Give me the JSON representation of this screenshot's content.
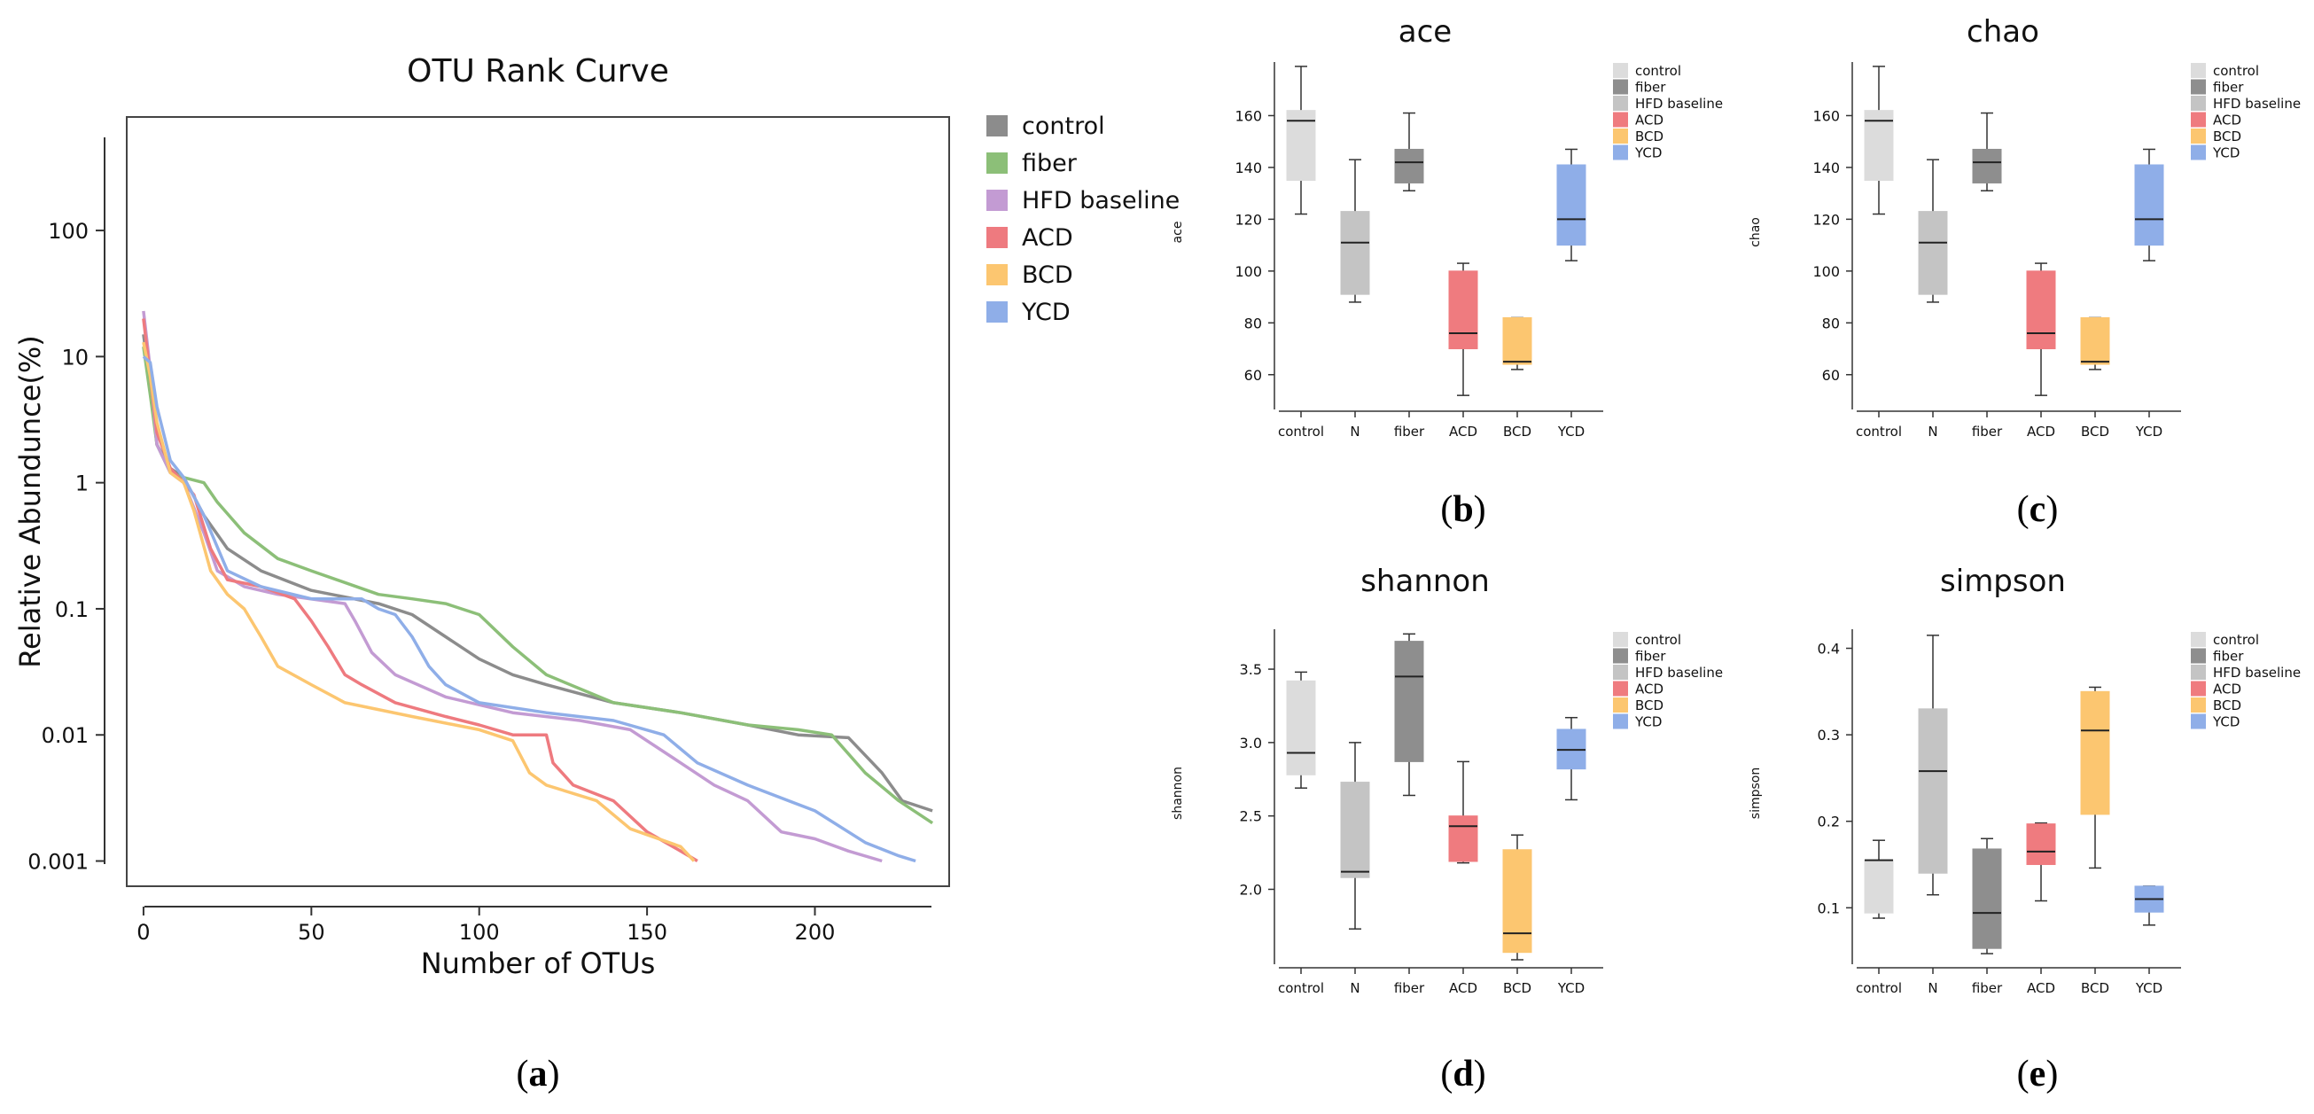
{
  "panels": {
    "a": {
      "caption_open": "(",
      "caption_letter": "a",
      "caption_close": ")"
    },
    "b": {
      "caption_open": "(",
      "caption_letter": "b",
      "caption_close": ")"
    },
    "c": {
      "caption_open": "(",
      "caption_letter": "c",
      "caption_close": ")"
    },
    "d": {
      "caption_open": "(",
      "caption_letter": "d",
      "caption_close": ")"
    },
    "e": {
      "caption_open": "(",
      "caption_letter": "e",
      "caption_close": ")"
    }
  },
  "chart_data": [
    {
      "id": "a",
      "type": "line",
      "title": "OTU Rank Curve",
      "xlabel": "Number of OTUs",
      "ylabel": "Relative Abundunce(%)",
      "xlim": [
        -5,
        240
      ],
      "ylim_log10": [
        -3.2,
        2.9
      ],
      "x_ticks": [
        0,
        50,
        100,
        150,
        200
      ],
      "x_tick_labels": [
        "0",
        "50",
        "100",
        "150",
        "200"
      ],
      "y_ticks": [
        100,
        10,
        1,
        0.1,
        0.01,
        0.001
      ],
      "y_tick_labels": [
        "100",
        "10",
        "1",
        "0.1",
        "0.01",
        "0.001"
      ],
      "legend_position": "right-outside",
      "series": [
        {
          "name": "control",
          "color": "#8c8c8c",
          "points": [
            [
              0,
              15
            ],
            [
              2,
              6
            ],
            [
              4,
              2
            ],
            [
              8,
              1.3
            ],
            [
              12,
              1.1
            ],
            [
              18,
              0.55
            ],
            [
              25,
              0.3
            ],
            [
              35,
              0.2
            ],
            [
              50,
              0.14
            ],
            [
              70,
              0.11
            ],
            [
              80,
              0.09
            ],
            [
              90,
              0.06
            ],
            [
              100,
              0.04
            ],
            [
              110,
              0.03
            ],
            [
              120,
              0.025
            ],
            [
              140,
              0.018
            ],
            [
              160,
              0.015
            ],
            [
              180,
              0.012
            ],
            [
              195,
              0.01
            ],
            [
              210,
              0.0095
            ],
            [
              220,
              0.005
            ],
            [
              226,
              0.003
            ],
            [
              235,
              0.0025
            ]
          ]
        },
        {
          "name": "fiber",
          "color": "#8cbf78",
          "points": [
            [
              0,
              12
            ],
            [
              2,
              5
            ],
            [
              4,
              2
            ],
            [
              8,
              1.2
            ],
            [
              12,
              1.1
            ],
            [
              18,
              1.0
            ],
            [
              22,
              0.7
            ],
            [
              30,
              0.4
            ],
            [
              40,
              0.25
            ],
            [
              50,
              0.2
            ],
            [
              70,
              0.13
            ],
            [
              80,
              0.12
            ],
            [
              90,
              0.11
            ],
            [
              100,
              0.09
            ],
            [
              110,
              0.05
            ],
            [
              120,
              0.03
            ],
            [
              140,
              0.018
            ],
            [
              160,
              0.015
            ],
            [
              180,
              0.012
            ],
            [
              195,
              0.011
            ],
            [
              205,
              0.01
            ],
            [
              215,
              0.005
            ],
            [
              225,
              0.003
            ],
            [
              235,
              0.002
            ]
          ]
        },
        {
          "name": "HFD baseline",
          "color": "#c39bd3",
          "points": [
            [
              0,
              23
            ],
            [
              2,
              8
            ],
            [
              4,
              2
            ],
            [
              8,
              1.2
            ],
            [
              12,
              1.0
            ],
            [
              18,
              0.4
            ],
            [
              22,
              0.2
            ],
            [
              30,
              0.15
            ],
            [
              40,
              0.13
            ],
            [
              60,
              0.11
            ],
            [
              63,
              0.08
            ],
            [
              68,
              0.045
            ],
            [
              75,
              0.03
            ],
            [
              90,
              0.02
            ],
            [
              110,
              0.015
            ],
            [
              130,
              0.013
            ],
            [
              145,
              0.011
            ],
            [
              160,
              0.006
            ],
            [
              170,
              0.004
            ],
            [
              180,
              0.003
            ],
            [
              190,
              0.0017
            ],
            [
              200,
              0.0015
            ],
            [
              210,
              0.0012
            ],
            [
              220,
              0.001
            ]
          ]
        },
        {
          "name": "ACD",
          "color": "#ee7a7f",
          "points": [
            [
              0,
              20
            ],
            [
              2,
              7
            ],
            [
              4,
              2.5
            ],
            [
              8,
              1.3
            ],
            [
              12,
              1.0
            ],
            [
              15,
              0.8
            ],
            [
              20,
              0.3
            ],
            [
              25,
              0.17
            ],
            [
              35,
              0.15
            ],
            [
              45,
              0.12
            ],
            [
              50,
              0.08
            ],
            [
              55,
              0.05
            ],
            [
              60,
              0.03
            ],
            [
              65,
              0.025
            ],
            [
              75,
              0.018
            ],
            [
              90,
              0.014
            ],
            [
              100,
              0.012
            ],
            [
              110,
              0.01
            ],
            [
              120,
              0.01
            ],
            [
              122,
              0.006
            ],
            [
              128,
              0.004
            ],
            [
              140,
              0.003
            ],
            [
              150,
              0.0017
            ],
            [
              160,
              0.0012
            ],
            [
              165,
              0.001
            ]
          ]
        },
        {
          "name": "BCD",
          "color": "#fcc670",
          "points": [
            [
              0,
              13
            ],
            [
              2,
              7
            ],
            [
              4,
              3
            ],
            [
              8,
              1.2
            ],
            [
              12,
              1.0
            ],
            [
              15,
              0.6
            ],
            [
              20,
              0.2
            ],
            [
              25,
              0.13
            ],
            [
              30,
              0.1
            ],
            [
              35,
              0.06
            ],
            [
              40,
              0.035
            ],
            [
              50,
              0.025
            ],
            [
              60,
              0.018
            ],
            [
              80,
              0.014
            ],
            [
              100,
              0.011
            ],
            [
              110,
              0.009
            ],
            [
              115,
              0.005
            ],
            [
              120,
              0.004
            ],
            [
              135,
              0.003
            ],
            [
              145,
              0.0018
            ],
            [
              160,
              0.0013
            ],
            [
              164,
              0.001
            ]
          ]
        },
        {
          "name": "YCD",
          "color": "#8faee8",
          "points": [
            [
              0,
              10
            ],
            [
              2,
              9
            ],
            [
              4,
              4
            ],
            [
              8,
              1.5
            ],
            [
              12,
              1.1
            ],
            [
              18,
              0.55
            ],
            [
              25,
              0.2
            ],
            [
              35,
              0.15
            ],
            [
              50,
              0.12
            ],
            [
              65,
              0.12
            ],
            [
              70,
              0.1
            ],
            [
              75,
              0.09
            ],
            [
              80,
              0.06
            ],
            [
              85,
              0.035
            ],
            [
              90,
              0.025
            ],
            [
              100,
              0.018
            ],
            [
              120,
              0.015
            ],
            [
              140,
              0.013
            ],
            [
              155,
              0.01
            ],
            [
              165,
              0.006
            ],
            [
              180,
              0.004
            ],
            [
              200,
              0.0025
            ],
            [
              215,
              0.0014
            ],
            [
              225,
              0.0011
            ],
            [
              230,
              0.001
            ]
          ]
        }
      ]
    },
    {
      "id": "b",
      "type": "box",
      "title": "ace",
      "ylabel": "ace",
      "categories": [
        "control",
        "N",
        "fiber",
        "ACD",
        "BCD",
        "YCD"
      ],
      "ylim": [
        50,
        180
      ],
      "y_ticks": [
        60,
        80,
        100,
        120,
        140,
        160
      ],
      "legend": [
        "control",
        "fiber",
        "HFD baseline",
        "ACD",
        "BCD",
        "YCD"
      ],
      "boxes": [
        {
          "min": 122,
          "q1": 135,
          "median": 158,
          "q3": 162,
          "max": 179,
          "color": "#dcdcdc"
        },
        {
          "min": 88,
          "q1": 91,
          "median": 111,
          "q3": 123,
          "max": 143,
          "color": "#c4c4c4"
        },
        {
          "min": 131,
          "q1": 134,
          "median": 142,
          "q3": 147,
          "max": 161,
          "color": "#8e8e8e"
        },
        {
          "min": 52,
          "q1": 70,
          "median": 76,
          "q3": 100,
          "max": 103,
          "color": "#ef7b7f"
        },
        {
          "min": 62,
          "q1": 64,
          "median": 65,
          "q3": 82,
          "max": 82,
          "color": "#fcc670"
        },
        {
          "min": 104,
          "q1": 110,
          "median": 120,
          "q3": 141,
          "max": 147,
          "color": "#8faee8"
        }
      ]
    },
    {
      "id": "c",
      "type": "box",
      "title": "chao",
      "ylabel": "chao",
      "categories": [
        "control",
        "N",
        "fiber",
        "ACD",
        "BCD",
        "YCD"
      ],
      "ylim": [
        50,
        180
      ],
      "y_ticks": [
        60,
        80,
        100,
        120,
        140,
        160
      ],
      "legend": [
        "control",
        "fiber",
        "HFD baseline",
        "ACD",
        "BCD",
        "YCD"
      ],
      "boxes": [
        {
          "min": 122,
          "q1": 135,
          "median": 158,
          "q3": 162,
          "max": 179,
          "color": "#dcdcdc"
        },
        {
          "min": 88,
          "q1": 91,
          "median": 111,
          "q3": 123,
          "max": 143,
          "color": "#c4c4c4"
        },
        {
          "min": 131,
          "q1": 134,
          "median": 142,
          "q3": 147,
          "max": 161,
          "color": "#8e8e8e"
        },
        {
          "min": 52,
          "q1": 70,
          "median": 76,
          "q3": 100,
          "max": 103,
          "color": "#ef7b7f"
        },
        {
          "min": 62,
          "q1": 64,
          "median": 65,
          "q3": 82,
          "max": 82,
          "color": "#fcc670"
        },
        {
          "min": 104,
          "q1": 110,
          "median": 120,
          "q3": 141,
          "max": 147,
          "color": "#8faee8"
        }
      ]
    },
    {
      "id": "d",
      "type": "box",
      "title": "shannon",
      "ylabel": "shannon",
      "categories": [
        "control",
        "N",
        "fiber",
        "ACD",
        "BCD",
        "YCD"
      ],
      "ylim": [
        1.55,
        3.76
      ],
      "y_ticks": [
        2.0,
        2.5,
        3.0,
        3.5
      ],
      "y_tick_labels": [
        "2.0",
        "2.5",
        "3.0",
        "3.5"
      ],
      "legend": [
        "control",
        "fiber",
        "HFD baseline",
        "ACD",
        "BCD",
        "YCD"
      ],
      "boxes": [
        {
          "min": 2.69,
          "q1": 2.78,
          "median": 2.93,
          "q3": 3.42,
          "max": 3.48,
          "color": "#dcdcdc"
        },
        {
          "min": 1.73,
          "q1": 2.08,
          "median": 2.12,
          "q3": 2.73,
          "max": 3.0,
          "color": "#c4c4c4"
        },
        {
          "min": 2.64,
          "q1": 2.87,
          "median": 3.45,
          "q3": 3.69,
          "max": 3.74,
          "color": "#8e8e8e"
        },
        {
          "min": 2.18,
          "q1": 2.19,
          "median": 2.43,
          "q3": 2.5,
          "max": 2.87,
          "color": "#ef7b7f"
        },
        {
          "min": 1.52,
          "q1": 1.57,
          "median": 1.7,
          "q3": 2.27,
          "max": 2.37,
          "color": "#fcc670"
        },
        {
          "min": 2.61,
          "q1": 2.82,
          "median": 2.95,
          "q3": 3.09,
          "max": 3.17,
          "color": "#8faee8"
        }
      ]
    },
    {
      "id": "e",
      "type": "box",
      "title": "simpson",
      "ylabel": "simpson",
      "categories": [
        "control",
        "N",
        "fiber",
        "ACD",
        "BCD",
        "YCD"
      ],
      "ylim": [
        0.045,
        0.42
      ],
      "y_ticks": [
        0.1,
        0.2,
        0.3,
        0.4
      ],
      "y_tick_labels": [
        "0.1",
        "0.2",
        "0.3",
        "0.4"
      ],
      "legend": [
        "control",
        "fiber",
        "HFD baseline",
        "ACD",
        "BCD",
        "YCD"
      ],
      "boxes": [
        {
          "min": 0.088,
          "q1": 0.094,
          "median": 0.155,
          "q3": 0.155,
          "max": 0.178,
          "color": "#dcdcdc"
        },
        {
          "min": 0.115,
          "q1": 0.14,
          "median": 0.258,
          "q3": 0.33,
          "max": 0.415,
          "color": "#c4c4c4"
        },
        {
          "min": 0.047,
          "q1": 0.053,
          "median": 0.094,
          "q3": 0.168,
          "max": 0.18,
          "color": "#8e8e8e"
        },
        {
          "min": 0.108,
          "q1": 0.15,
          "median": 0.165,
          "q3": 0.197,
          "max": 0.198,
          "color": "#ef7b7f"
        },
        {
          "min": 0.146,
          "q1": 0.208,
          "median": 0.305,
          "q3": 0.35,
          "max": 0.355,
          "color": "#fcc670"
        },
        {
          "min": 0.08,
          "q1": 0.095,
          "median": 0.11,
          "q3": 0.125,
          "max": 0.125,
          "color": "#8faee8"
        }
      ]
    }
  ]
}
